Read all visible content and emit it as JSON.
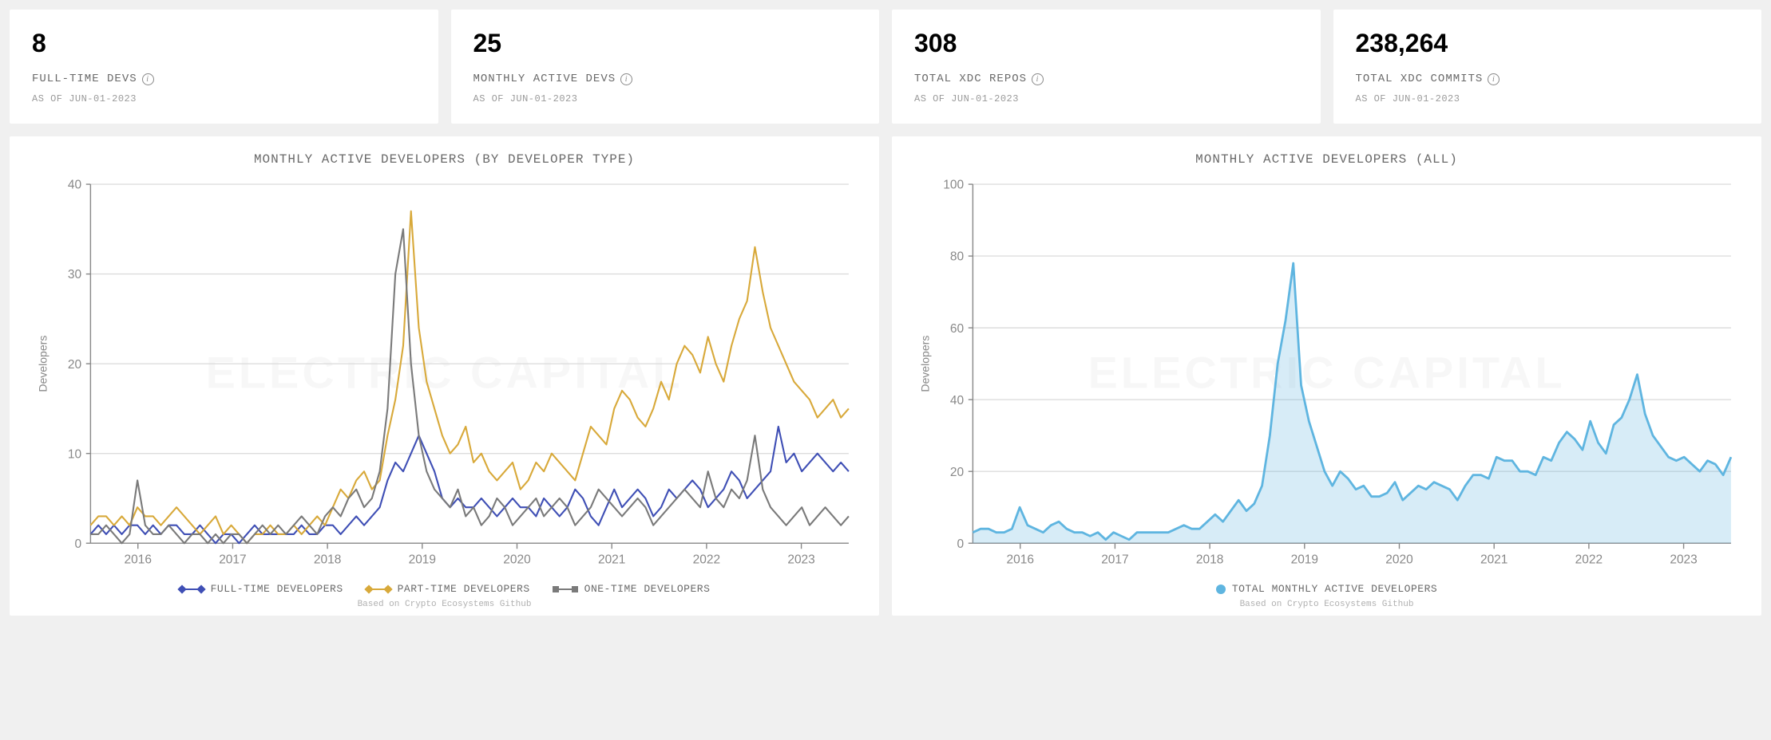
{
  "stats": [
    {
      "value": "8",
      "label": "FULL-TIME DEVS",
      "date": "AS OF JUN-01-2023"
    },
    {
      "value": "25",
      "label": "MONTHLY ACTIVE DEVS",
      "date": "AS OF JUN-01-2023"
    },
    {
      "value": "308",
      "label": "TOTAL XDC REPOS",
      "date": "AS OF JUN-01-2023"
    },
    {
      "value": "238,264",
      "label": "TOTAL XDC COMMITS",
      "date": "AS OF JUN-01-2023"
    }
  ],
  "watermark": "ELECTRIC CAPITAL",
  "credit": "Based on Crypto Ecosystems Github",
  "chart_left": {
    "title": "MONTHLY ACTIVE DEVELOPERS (BY DEVELOPER TYPE)",
    "type": "line",
    "ylabel": "Developers",
    "ylim": [
      0,
      40
    ],
    "ytick_step": 10,
    "xlabels": [
      "2016",
      "2017",
      "2018",
      "2019",
      "2020",
      "2021",
      "2022",
      "2023"
    ],
    "background_color": "#ffffff",
    "grid_color": "#dddddd",
    "axis_color": "#888888",
    "line_width": 1.5,
    "series": [
      {
        "name": "FULL-TIME DEVELOPERS",
        "color": "#3f4fb5",
        "marker": "diamond",
        "values": [
          1,
          2,
          1,
          2,
          1,
          2,
          2,
          1,
          2,
          1,
          2,
          2,
          1,
          1,
          2,
          1,
          0,
          1,
          1,
          0,
          1,
          2,
          1,
          1,
          1,
          1,
          1,
          2,
          1,
          1,
          2,
          2,
          1,
          2,
          3,
          2,
          3,
          4,
          7,
          9,
          8,
          10,
          12,
          10,
          8,
          5,
          4,
          5,
          4,
          4,
          5,
          4,
          3,
          4,
          5,
          4,
          4,
          3,
          5,
          4,
          3,
          4,
          6,
          5,
          3,
          2,
          4,
          6,
          4,
          5,
          6,
          5,
          3,
          4,
          6,
          5,
          6,
          7,
          6,
          4,
          5,
          6,
          8,
          7,
          5,
          6,
          7,
          8,
          13,
          9,
          10,
          8,
          9,
          10,
          9,
          8,
          9,
          8
        ]
      },
      {
        "name": "PART-TIME DEVELOPERS",
        "color": "#d8a93a",
        "marker": "diamond",
        "values": [
          2,
          3,
          3,
          2,
          3,
          2,
          4,
          3,
          3,
          2,
          3,
          4,
          3,
          2,
          1,
          2,
          3,
          1,
          2,
          1,
          0,
          1,
          1,
          2,
          1,
          1,
          2,
          1,
          2,
          3,
          2,
          4,
          6,
          5,
          7,
          8,
          6,
          7,
          12,
          16,
          22,
          37,
          24,
          18,
          15,
          12,
          10,
          11,
          13,
          9,
          10,
          8,
          7,
          8,
          9,
          6,
          7,
          9,
          8,
          10,
          9,
          8,
          7,
          10,
          13,
          12,
          11,
          15,
          17,
          16,
          14,
          13,
          15,
          18,
          16,
          20,
          22,
          21,
          19,
          23,
          20,
          18,
          22,
          25,
          27,
          33,
          28,
          24,
          22,
          20,
          18,
          17,
          16,
          14,
          15,
          16,
          14,
          15
        ]
      },
      {
        "name": "ONE-TIME DEVELOPERS",
        "color": "#7a7a7a",
        "marker": "square",
        "values": [
          1,
          1,
          2,
          1,
          0,
          1,
          7,
          2,
          1,
          1,
          2,
          1,
          0,
          1,
          1,
          0,
          1,
          0,
          1,
          1,
          0,
          1,
          2,
          1,
          2,
          1,
          2,
          3,
          2,
          1,
          3,
          4,
          3,
          5,
          6,
          4,
          5,
          8,
          15,
          30,
          35,
          20,
          12,
          8,
          6,
          5,
          4,
          6,
          3,
          4,
          2,
          3,
          5,
          4,
          2,
          3,
          4,
          5,
          3,
          4,
          5,
          4,
          2,
          3,
          4,
          6,
          5,
          4,
          3,
          4,
          5,
          4,
          2,
          3,
          4,
          5,
          6,
          5,
          4,
          8,
          5,
          4,
          6,
          5,
          7,
          12,
          6,
          4,
          3,
          2,
          3,
          4,
          2,
          3,
          4,
          3,
          2,
          3
        ]
      }
    ]
  },
  "chart_right": {
    "title": "MONTHLY ACTIVE DEVELOPERS (ALL)",
    "type": "area",
    "ylabel": "Developers",
    "ylim": [
      0,
      100
    ],
    "ytick_step": 20,
    "xlabels": [
      "2016",
      "2017",
      "2018",
      "2019",
      "2020",
      "2021",
      "2022",
      "2023"
    ],
    "background_color": "#ffffff",
    "grid_color": "#dddddd",
    "axis_color": "#888888",
    "line_width": 2,
    "fill_opacity": 0.25,
    "series": [
      {
        "name": "TOTAL MONTHLY ACTIVE DEVELOPERS",
        "color": "#5fb5e0",
        "marker": "circle",
        "values": [
          3,
          4,
          4,
          3,
          3,
          4,
          10,
          5,
          4,
          3,
          5,
          6,
          4,
          3,
          3,
          2,
          3,
          1,
          3,
          2,
          1,
          3,
          3,
          3,
          3,
          3,
          4,
          5,
          4,
          4,
          6,
          8,
          6,
          9,
          12,
          9,
          11,
          16,
          30,
          50,
          62,
          78,
          44,
          34,
          27,
          20,
          16,
          20,
          18,
          15,
          16,
          13,
          13,
          14,
          17,
          12,
          14,
          16,
          15,
          17,
          16,
          15,
          12,
          16,
          19,
          19,
          18,
          24,
          23,
          23,
          20,
          20,
          19,
          24,
          23,
          28,
          31,
          29,
          26,
          34,
          28,
          25,
          33,
          35,
          40,
          47,
          36,
          30,
          27,
          24,
          23,
          24,
          22,
          20,
          23,
          22,
          19,
          24
        ]
      }
    ]
  }
}
